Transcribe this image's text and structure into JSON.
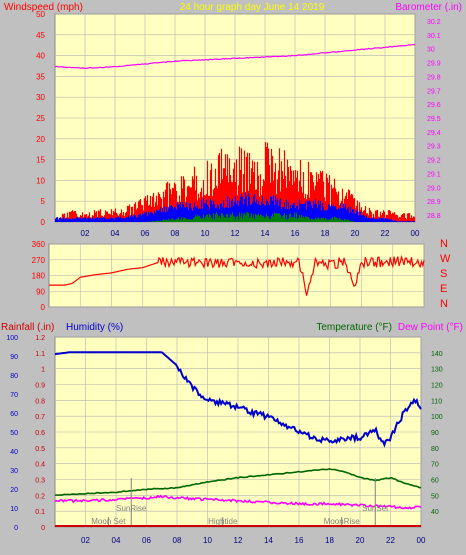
{
  "colors": {
    "frame_bg": "#c0c0c0",
    "plot_bg": "#ffffc0",
    "grid": "#b4b4b4",
    "wind": "#ff0000",
    "gust_blue": "#0000ff",
    "gust_green": "#008000",
    "barometer": "#ff00ff",
    "title": "#ffff00",
    "humidity": "#0000cc",
    "temperature": "#006600",
    "dew": "#ff00ff",
    "rain": "#cc0000",
    "events": "#808080"
  },
  "header": {
    "left_label": "Windspeed (mph)",
    "title": "24 hour graph day   June 14 2019",
    "right_label": "Barometer (.in)"
  },
  "compass_labels": [
    "N",
    "W",
    "S",
    "E",
    "N"
  ],
  "bottom_labels": {
    "rainfall": "Rainfall (.in)",
    "humidity": "Humidity (%)",
    "temperature": "Temperature (°F)",
    "dewpoint": "Dew Point (°F)"
  },
  "time_ticks": [
    "02",
    "04",
    "06",
    "08",
    "10",
    "12",
    "14",
    "16",
    "18",
    "20",
    "22",
    "00"
  ],
  "events": [
    {
      "label": "SunRise",
      "hour": 5.0,
      "row": 0
    },
    {
      "label": "Moon Set",
      "hour": 3.5,
      "row": 1
    },
    {
      "label": "Hightide",
      "hour": 11.0,
      "row": 1
    },
    {
      "label": "SunSet",
      "hour": 21.0,
      "row": 0
    },
    {
      "label": "MoonRise",
      "hour": 18.8,
      "row": 1
    }
  ],
  "chart_data": [
    {
      "type": "line",
      "panel": "wind_barometer",
      "title": "24 hour graph day   June 14 2019",
      "xlabel": "",
      "ylabel": "Windspeed (mph)",
      "ylabel_right": "Barometer (.in)",
      "x_ticks": [
        "02",
        "04",
        "06",
        "08",
        "10",
        "12",
        "14",
        "16",
        "18",
        "20",
        "22",
        "00"
      ],
      "ylim": [
        0,
        50
      ],
      "yticks": [
        0,
        5,
        10,
        15,
        20,
        25,
        30,
        35,
        40,
        45,
        50
      ],
      "ylim_right": [
        29.8,
        30.2
      ],
      "yticks_right": [
        "28.8",
        "28.9",
        "29.0",
        "29.1",
        "29.2",
        "29.3",
        "29.4",
        "29.5",
        "29.6",
        "29.7",
        "29.8",
        "29.9",
        "30",
        "30.1",
        "30.2"
      ],
      "series": [
        {
          "name": "Gust",
          "axis": "left",
          "x": [
            0,
            1,
            2,
            3,
            4,
            5,
            6,
            7,
            7.5,
            8,
            8.5,
            9,
            9.5,
            10,
            10.5,
            11,
            11.5,
            12,
            12.5,
            13,
            13.5,
            14,
            14.5,
            15,
            15.5,
            16,
            16.5,
            17,
            17.5,
            18,
            18.5,
            19,
            19.5,
            20,
            21,
            22,
            23,
            24
          ],
          "y": [
            1,
            3,
            2,
            3,
            3,
            4,
            6,
            8,
            9,
            10,
            11,
            12,
            14,
            16,
            15,
            17,
            16,
            18,
            17,
            16,
            17,
            18,
            16,
            17,
            15,
            15,
            14,
            13,
            12,
            11,
            10,
            9,
            8,
            5,
            3,
            3,
            2,
            2
          ]
        },
        {
          "name": "Average",
          "axis": "left",
          "x": [
            0,
            2,
            4,
            6,
            7,
            8,
            9,
            10,
            11,
            12,
            13,
            14,
            15,
            16,
            17,
            18,
            19,
            20,
            21,
            22,
            23,
            24
          ],
          "y": [
            1,
            1,
            1,
            2,
            3,
            4,
            4,
            5,
            5,
            6,
            6,
            6,
            5,
            5,
            5,
            4,
            4,
            3,
            1,
            1,
            0,
            0
          ]
        },
        {
          "name": "Low",
          "axis": "left",
          "x": [
            0,
            4,
            6,
            8,
            9,
            10,
            11,
            12,
            13,
            14,
            15,
            16,
            17,
            18,
            19,
            20,
            24
          ],
          "y": [
            0,
            0,
            0,
            1,
            1,
            2,
            2,
            2,
            2,
            2,
            2,
            2,
            1,
            1,
            1,
            0,
            0
          ]
        },
        {
          "name": "Barometer",
          "axis": "right",
          "x": [
            0,
            2,
            4,
            6,
            8,
            10,
            12,
            14,
            16,
            18,
            20,
            22,
            24
          ],
          "y": [
            29.87,
            29.86,
            29.87,
            29.89,
            29.91,
            29.92,
            29.93,
            29.94,
            29.95,
            29.97,
            29.99,
            30.01,
            30.03
          ]
        }
      ]
    },
    {
      "type": "line",
      "panel": "wind_direction",
      "xlabel": "",
      "ylabel": "",
      "x_ticks": [],
      "ylim": [
        0,
        360
      ],
      "yticks": [
        0,
        90,
        180,
        270,
        360
      ],
      "series": [
        {
          "name": "Direction",
          "x": [
            0,
            1,
            1.5,
            2,
            3,
            4,
            5,
            6,
            6.5,
            7,
            7.5,
            8,
            9,
            10,
            11,
            12,
            13,
            14,
            15,
            16,
            16.5,
            17,
            18,
            19,
            19.5,
            20,
            21,
            22,
            23,
            23.5,
            24
          ],
          "y": [
            125,
            125,
            135,
            170,
            185,
            195,
            215,
            225,
            240,
            255,
            260,
            255,
            250,
            255,
            250,
            260,
            255,
            245,
            265,
            250,
            80,
            255,
            245,
            260,
            100,
            255,
            255,
            260,
            265,
            250,
            245
          ]
        }
      ]
    },
    {
      "type": "line",
      "panel": "rain_humidity_temperature",
      "xlabel": "",
      "ylabel": "Rainfall (.in)",
      "ylabel2": "Humidity (%)",
      "ylabel_right": "Temperature (°F)",
      "ylabel_right2": "Dew Point (°F)",
      "x_ticks": [
        "02",
        "04",
        "06",
        "08",
        "10",
        "12",
        "14",
        "16",
        "18",
        "20",
        "22",
        "00"
      ],
      "ylim_rain": [
        0,
        1.2
      ],
      "yticks_rain": [
        "0",
        "0.1",
        "0.2",
        "0.3",
        "0.4",
        "0.5",
        "0.6",
        "0.7",
        "0.8",
        "0.9",
        "1",
        "1.1",
        "1.2"
      ],
      "ylim_humidity": [
        0,
        100
      ],
      "yticks_humidity": [
        "0",
        "10",
        "20",
        "30",
        "40",
        "50",
        "60",
        "70",
        "80",
        "90",
        "100"
      ],
      "ylim_right": [
        30,
        150
      ],
      "yticks_right": [
        "40",
        "50",
        "60",
        "70",
        "80",
        "90",
        "100",
        "110",
        "120",
        "130",
        "140"
      ],
      "series": [
        {
          "name": "Humidity",
          "axis": "humidity",
          "x": [
            0,
            1,
            2,
            3,
            4,
            5,
            6,
            7,
            8,
            9,
            10,
            11,
            12,
            13,
            14,
            15,
            16,
            17,
            18,
            19,
            19.5,
            20,
            21,
            21.5,
            22,
            23,
            23.5,
            24
          ],
          "y": [
            91,
            92,
            92,
            92,
            92,
            92,
            92,
            92,
            85,
            73,
            67,
            65,
            63,
            60,
            58,
            54,
            50,
            47,
            45,
            46,
            47,
            47,
            51,
            44,
            47,
            62,
            67,
            63
          ]
        },
        {
          "name": "Temperature",
          "axis": "right",
          "x": [
            0,
            2,
            4,
            6,
            8,
            10,
            12,
            14,
            16,
            17,
            18,
            19,
            20,
            21,
            22,
            23,
            24
          ],
          "y": [
            52,
            53,
            54,
            56,
            57,
            61,
            64,
            66,
            68,
            69,
            70,
            68,
            64,
            62,
            64,
            60,
            57
          ]
        },
        {
          "name": "Dew Point",
          "axis": "right",
          "x": [
            0,
            2,
            4,
            6,
            7,
            8,
            10,
            12,
            14,
            16,
            18,
            20,
            22,
            23,
            24
          ],
          "y": [
            48,
            48,
            49,
            50,
            51,
            50,
            49,
            48,
            47,
            46,
            46,
            45,
            44,
            43,
            44
          ]
        },
        {
          "name": "Rainfall",
          "axis": "rain",
          "x": [
            0,
            24
          ],
          "y": [
            0,
            0
          ]
        }
      ]
    }
  ]
}
